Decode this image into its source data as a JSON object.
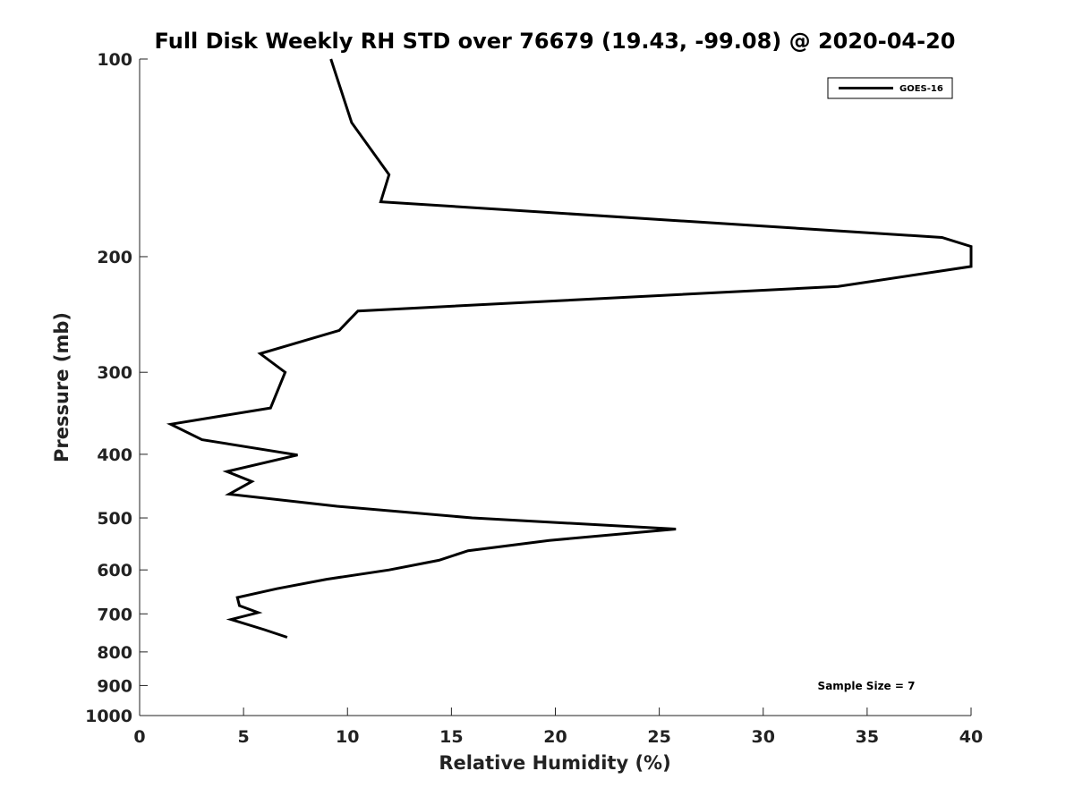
{
  "chart_data": {
    "type": "line",
    "title": "Full Disk Weekly RH STD over 76679 (19.43, -99.08) @ 2020-04-20",
    "xlabel": "Relative Humidity (%)",
    "ylabel": "Pressure (mb)",
    "xlim": [
      0,
      40
    ],
    "ylim": [
      100,
      1000
    ],
    "yscale": "log",
    "y_inverted": true,
    "grid": false,
    "legend_position": "top-right",
    "x_ticks": [
      0,
      5,
      10,
      15,
      20,
      25,
      30,
      35,
      40
    ],
    "x_tick_labels": [
      "0",
      "5",
      "10",
      "15",
      "20",
      "25",
      "30",
      "35",
      "40"
    ],
    "y_ticks": [
      100,
      200,
      300,
      400,
      500,
      600,
      700,
      800,
      900,
      1000
    ],
    "y_tick_labels": [
      "100",
      "200",
      "300",
      "400",
      "500",
      "600",
      "700",
      "800",
      "900",
      "1000"
    ],
    "series": [
      {
        "name": "GOES-16",
        "color": "#000000",
        "points": [
          {
            "x": 9.2,
            "y": 100
          },
          {
            "x": 10.2,
            "y": 125
          },
          {
            "x": 12.0,
            "y": 150
          },
          {
            "x": 11.6,
            "y": 165
          },
          {
            "x": 38.6,
            "y": 187
          },
          {
            "x": 40.0,
            "y": 193
          },
          {
            "x": 40.0,
            "y": 207
          },
          {
            "x": 33.6,
            "y": 222
          },
          {
            "x": 10.5,
            "y": 242
          },
          {
            "x": 9.6,
            "y": 259
          },
          {
            "x": 5.8,
            "y": 281
          },
          {
            "x": 7.0,
            "y": 300
          },
          {
            "x": 6.3,
            "y": 340
          },
          {
            "x": 1.5,
            "y": 360
          },
          {
            "x": 3.0,
            "y": 380
          },
          {
            "x": 7.6,
            "y": 401
          },
          {
            "x": 4.2,
            "y": 425
          },
          {
            "x": 5.4,
            "y": 440
          },
          {
            "x": 4.3,
            "y": 460
          },
          {
            "x": 9.5,
            "y": 480
          },
          {
            "x": 16.0,
            "y": 500
          },
          {
            "x": 25.8,
            "y": 520
          },
          {
            "x": 19.7,
            "y": 541
          },
          {
            "x": 15.8,
            "y": 561
          },
          {
            "x": 14.4,
            "y": 580
          },
          {
            "x": 12.0,
            "y": 600
          },
          {
            "x": 9.0,
            "y": 620
          },
          {
            "x": 6.6,
            "y": 641
          },
          {
            "x": 4.7,
            "y": 661
          },
          {
            "x": 4.8,
            "y": 680
          },
          {
            "x": 5.7,
            "y": 697
          },
          {
            "x": 4.4,
            "y": 714
          },
          {
            "x": 6.0,
            "y": 740
          },
          {
            "x": 7.1,
            "y": 760
          }
        ]
      }
    ],
    "annotations": [
      {
        "text": "Sample Size = 7",
        "position": "bottom-right"
      }
    ]
  }
}
